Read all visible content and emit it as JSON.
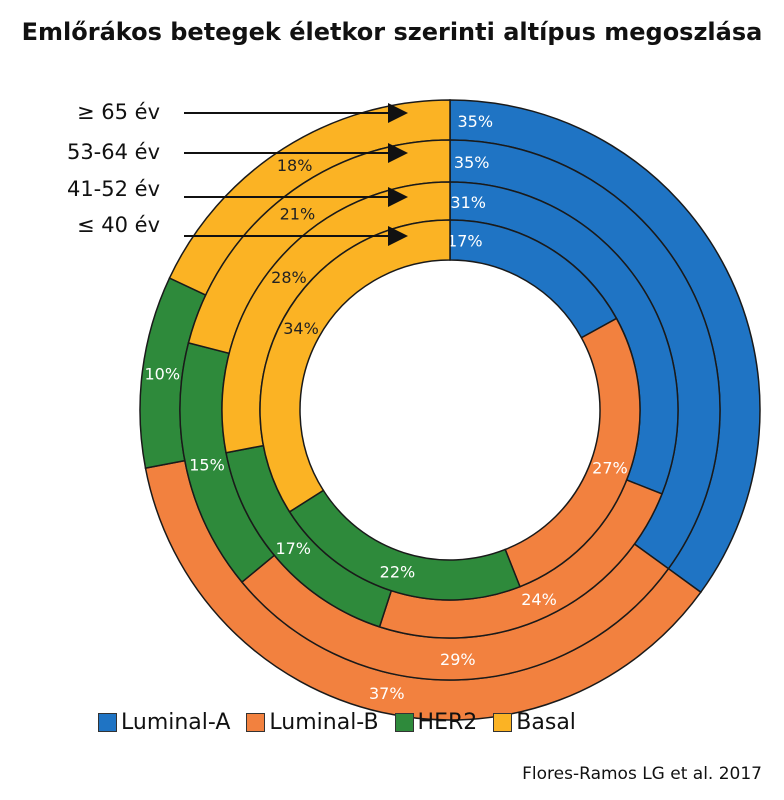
{
  "chart_data": {
    "type": "donut",
    "title": "Emlőrákos betegek életkor szerinti altípus megoszlása",
    "categories": [
      "Luminal-A",
      "Luminal-B",
      "HER2",
      "Basal"
    ],
    "colors": [
      "#1f74c4",
      "#f2813f",
      "#2e8a3b",
      "#fbb324"
    ],
    "rings": [
      {
        "label": "≥ 65 év",
        "values": [
          35,
          37,
          10,
          18
        ],
        "value_labels": [
          "35%",
          "37%",
          "10%",
          "18%"
        ]
      },
      {
        "label": "53-64 év",
        "values": [
          35,
          29,
          15,
          21
        ],
        "value_labels": [
          "35%",
          "29%",
          "15%",
          "21%"
        ]
      },
      {
        "label": "41-52 év",
        "values": [
          31,
          24,
          17,
          28
        ],
        "value_labels": [
          "31%",
          "24%",
          "17%",
          "28%"
        ]
      },
      {
        "label": "≤ 40 év",
        "values": [
          17,
          27,
          22,
          34
        ],
        "value_labels": [
          "17%",
          "27%",
          "22%",
          "34%"
        ]
      }
    ],
    "legend": [
      "Luminal-A",
      "Luminal-B",
      "HER2",
      "Basal"
    ],
    "legend_position": "bottom"
  },
  "source": "Flores-Ramos LG et al. 2017"
}
